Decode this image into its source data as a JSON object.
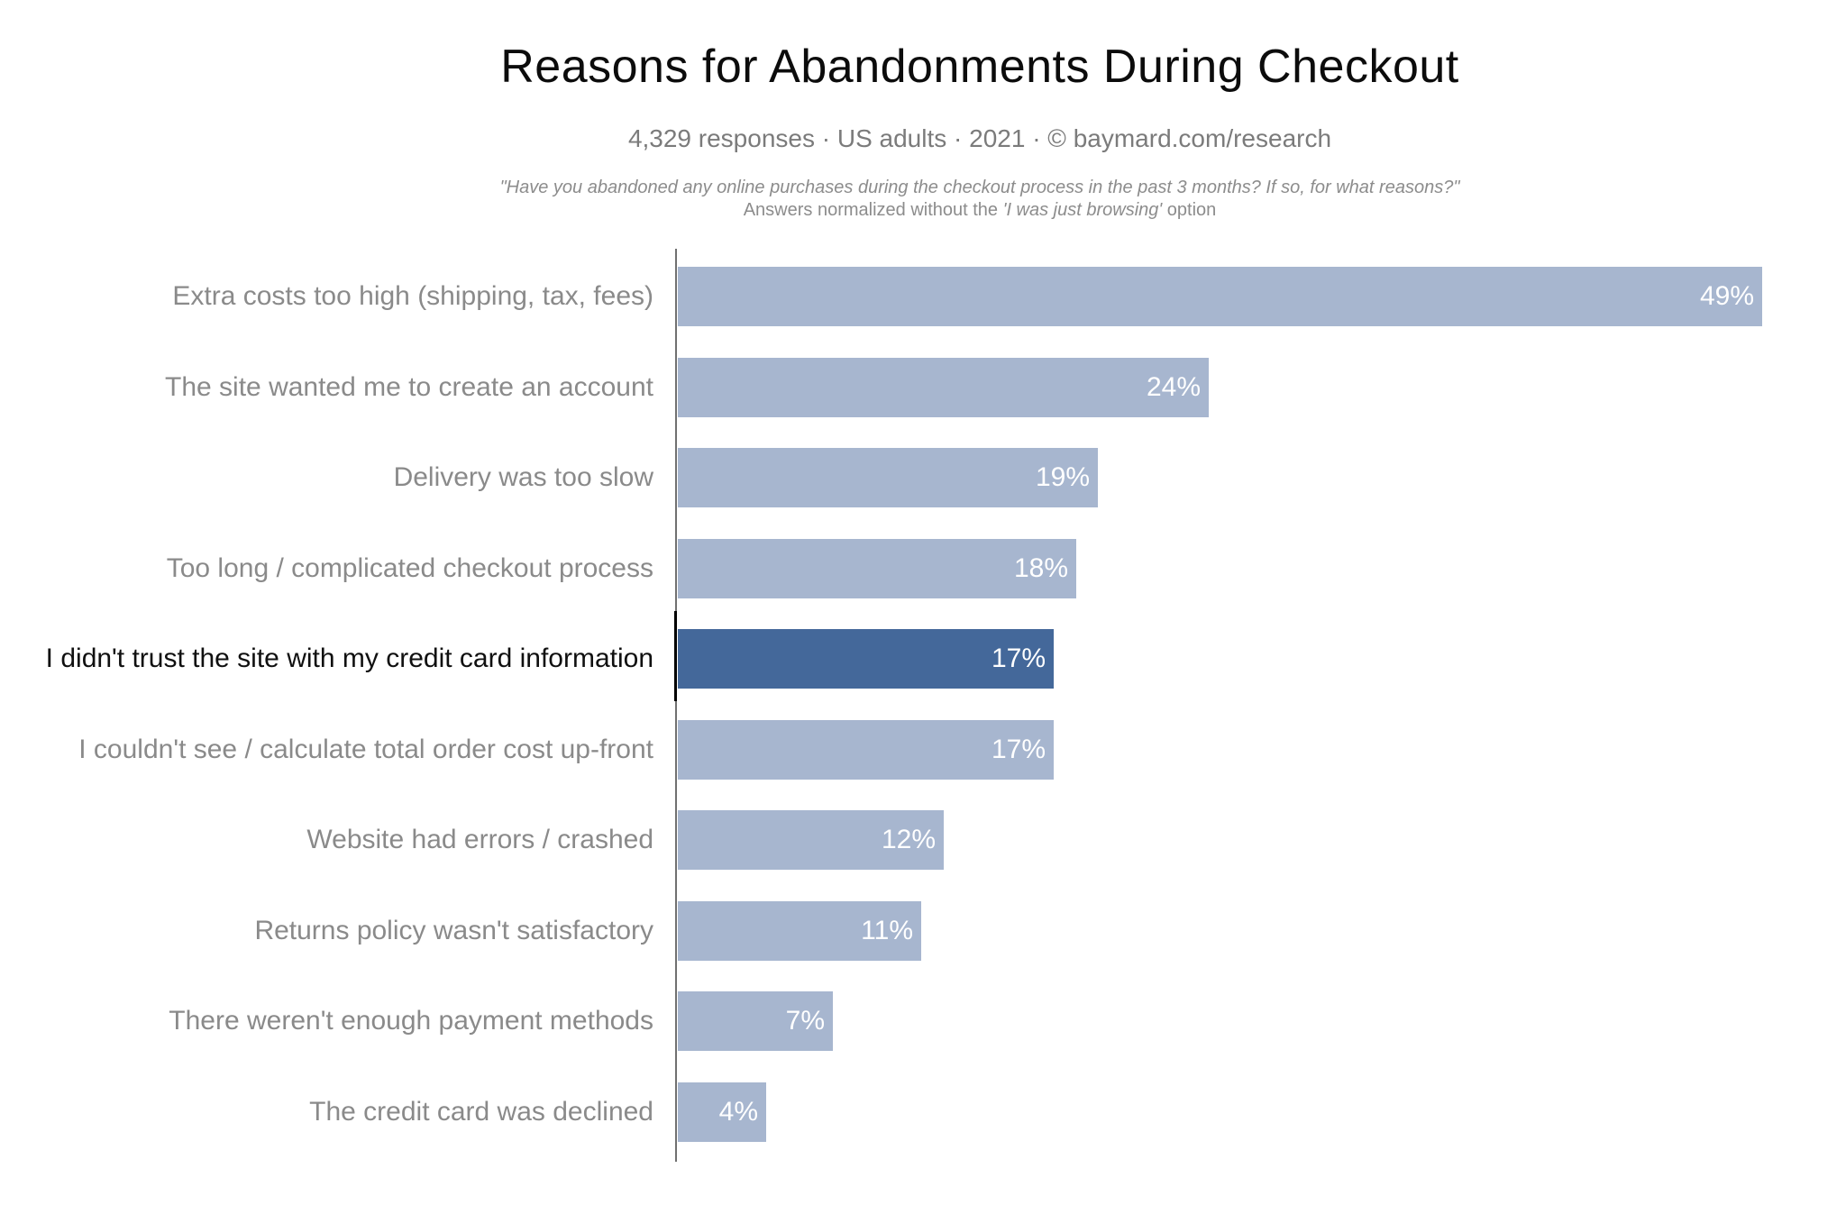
{
  "header": {
    "title": "Reasons for Abandonments During Checkout",
    "subtitle": "4,329 responses  ·  US adults  ·  2021  ·  ©  baymard.com/research",
    "quote_line1": "\"Have you abandoned any online purchases during the checkout process in the past 3 months? If so, for what reasons?\"",
    "note_prefix": "Answers normalized without the ",
    "note_italic": "'I was just browsing'",
    "note_suffix": " option"
  },
  "chart_data": {
    "type": "bar",
    "orientation": "horizontal",
    "title": "Reasons for Abandonments During Checkout",
    "subtitle": "4,329 responses · US adults · 2021 · © baymard.com/research",
    "categories": [
      "Extra costs too high (shipping, tax, fees)",
      "The site wanted me to create an account",
      "Delivery was too slow",
      "Too long / complicated checkout process",
      "I didn't trust the site with my credit card information",
      "I couldn't see / calculate total order cost up-front",
      "Website had errors / crashed",
      "Returns policy wasn't satisfactory",
      "There weren't enough payment methods",
      "The credit card was declined"
    ],
    "values": [
      49,
      24,
      19,
      18,
      17,
      17,
      12,
      11,
      7,
      4
    ],
    "value_labels": [
      "49%",
      "24%",
      "19%",
      "18%",
      "17%",
      "17%",
      "12%",
      "11%",
      "7%",
      "4%"
    ],
    "highlighted_index": 4,
    "xlim": [
      0,
      50
    ],
    "grid": false,
    "legend": "none",
    "colors": {
      "bar": "#a7b6cf",
      "bar_highlight": "#44689a",
      "category_label": "#8a8a8a",
      "category_label_highlight": "#101010",
      "value_text": "#ffffff",
      "axis": "#707070",
      "axis_highlight_segment": "#000000"
    }
  }
}
